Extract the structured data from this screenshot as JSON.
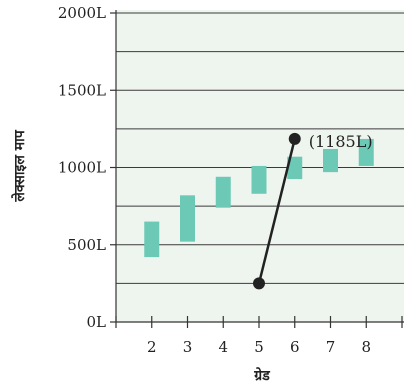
{
  "chart_data": {
    "type": "bar",
    "xlabel": "ग्रेड",
    "ylabel": "लेक्साइल माप",
    "x_ticks": [
      "2",
      "3",
      "4",
      "5",
      "6",
      "7",
      "8"
    ],
    "y_ticks": [
      "0L",
      "500L",
      "1000L",
      "1500L",
      "2000L"
    ],
    "y_tick_values": [
      0,
      500,
      1000,
      1500,
      2000
    ],
    "ylim": [
      0,
      2000
    ],
    "xlim": [
      1,
      9
    ],
    "grid": true,
    "series": [
      {
        "type": "range",
        "values": [
          {
            "x": 2,
            "low": 420,
            "high": 650
          },
          {
            "x": 3,
            "low": 520,
            "high": 820
          },
          {
            "x": 4,
            "low": 740,
            "high": 940
          },
          {
            "x": 5,
            "low": 830,
            "high": 1010
          },
          {
            "x": 6,
            "low": 925,
            "high": 1070
          },
          {
            "x": 7,
            "low": 970,
            "high": 1120
          },
          {
            "x": 8,
            "low": 1010,
            "high": 1185
          }
        ]
      },
      {
        "type": "line",
        "points": [
          {
            "x": 5,
            "y": 250
          },
          {
            "x": 6,
            "y": 1185
          }
        ]
      }
    ],
    "annotations": [
      {
        "text": "(1185L)",
        "x": 6,
        "y": 1185
      }
    ],
    "colors": {
      "plot_background": "#eef5ef",
      "gridline": "#3a3a3a",
      "range_bar": "#6cc9b6",
      "line": "#222222",
      "axis": "#333333"
    }
  }
}
